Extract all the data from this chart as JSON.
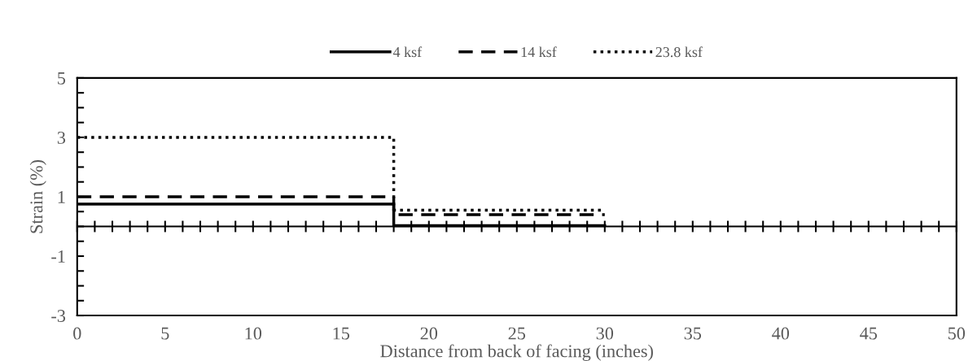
{
  "chart_data": {
    "type": "line",
    "xlabel": "Distance from back of facing (inches)",
    "ylabel": "Strain (%)",
    "x": [
      0,
      18,
      18,
      30
    ],
    "series": [
      {
        "name": "4 ksf",
        "color": "#000000",
        "line_style": "solid",
        "values": [
          0.75,
          0.75,
          0.03,
          0.03
        ]
      },
      {
        "name": "14 ksf",
        "color": "#000000",
        "line_style": "dashed",
        "values": [
          1.0,
          1.0,
          0.4,
          0.4
        ]
      },
      {
        "name": "23.8 ksf",
        "color": "#000000",
        "line_style": "dotted",
        "values": [
          3.0,
          3.0,
          0.55,
          0.55
        ]
      }
    ],
    "xlim": [
      0,
      50
    ],
    "ylim": [
      -3,
      5
    ],
    "xticks": [
      0,
      {
        "value": 1,
        "label": null
      },
      {
        "value": 2,
        "label": null
      },
      {
        "value": 3,
        "label": null
      },
      {
        "value": 4,
        "label": null
      },
      5,
      {
        "value": 6,
        "label": null
      },
      {
        "value": 7,
        "label": null
      },
      {
        "value": 8,
        "label": null
      },
      {
        "value": 9,
        "label": null
      },
      10,
      {
        "value": 11,
        "label": null
      },
      {
        "value": 12,
        "label": null
      },
      {
        "value": 13,
        "label": null
      },
      {
        "value": 14,
        "label": null
      },
      15,
      {
        "value": 16,
        "label": null
      },
      {
        "value": 17,
        "label": null
      },
      {
        "value": 18,
        "label": null
      },
      {
        "value": 19,
        "label": null
      },
      20,
      {
        "value": 21,
        "label": null
      },
      {
        "value": 22,
        "label": null
      },
      {
        "value": 23,
        "label": null
      },
      {
        "value": 24,
        "label": null
      },
      25,
      {
        "value": 26,
        "label": null
      },
      {
        "value": 27,
        "label": null
      },
      {
        "value": 28,
        "label": null
      },
      {
        "value": 29,
        "label": null
      },
      30,
      {
        "value": 31,
        "label": null
      },
      {
        "value": 32,
        "label": null
      },
      {
        "value": 33,
        "label": null
      },
      {
        "value": 34,
        "label": null
      },
      35,
      {
        "value": 36,
        "label": null
      },
      {
        "value": 37,
        "label": null
      },
      {
        "value": 38,
        "label": null
      },
      {
        "value": 39,
        "label": null
      },
      40,
      {
        "value": 41,
        "label": null
      },
      {
        "value": 42,
        "label": null
      },
      {
        "value": 43,
        "label": null
      },
      {
        "value": 44,
        "label": null
      },
      45,
      {
        "value": 46,
        "label": null
      },
      {
        "value": 47,
        "label": null
      },
      {
        "value": 48,
        "label": null
      },
      {
        "value": 49,
        "label": null
      },
      50
    ],
    "yticks": [
      -3,
      {
        "value": -2.5,
        "label": null
      },
      {
        "value": -2,
        "label": null
      },
      {
        "value": -1.5,
        "label": null
      },
      -1,
      {
        "value": -0.5,
        "label": null
      },
      {
        "value": 0,
        "label": null
      },
      {
        "value": 0.5,
        "label": null
      },
      1,
      {
        "value": 1.5,
        "label": null
      },
      {
        "value": 2,
        "label": null
      },
      {
        "value": 2.5,
        "label": null
      },
      3,
      {
        "value": 3.5,
        "label": null
      },
      {
        "value": 4,
        "label": null
      },
      {
        "value": 4.5,
        "label": null
      },
      5
    ],
    "ref_lines": [
      {
        "axis": "y",
        "value": 0,
        "color": "#000000",
        "line_style": "solid"
      }
    ],
    "grid": false,
    "legend": "top"
  }
}
